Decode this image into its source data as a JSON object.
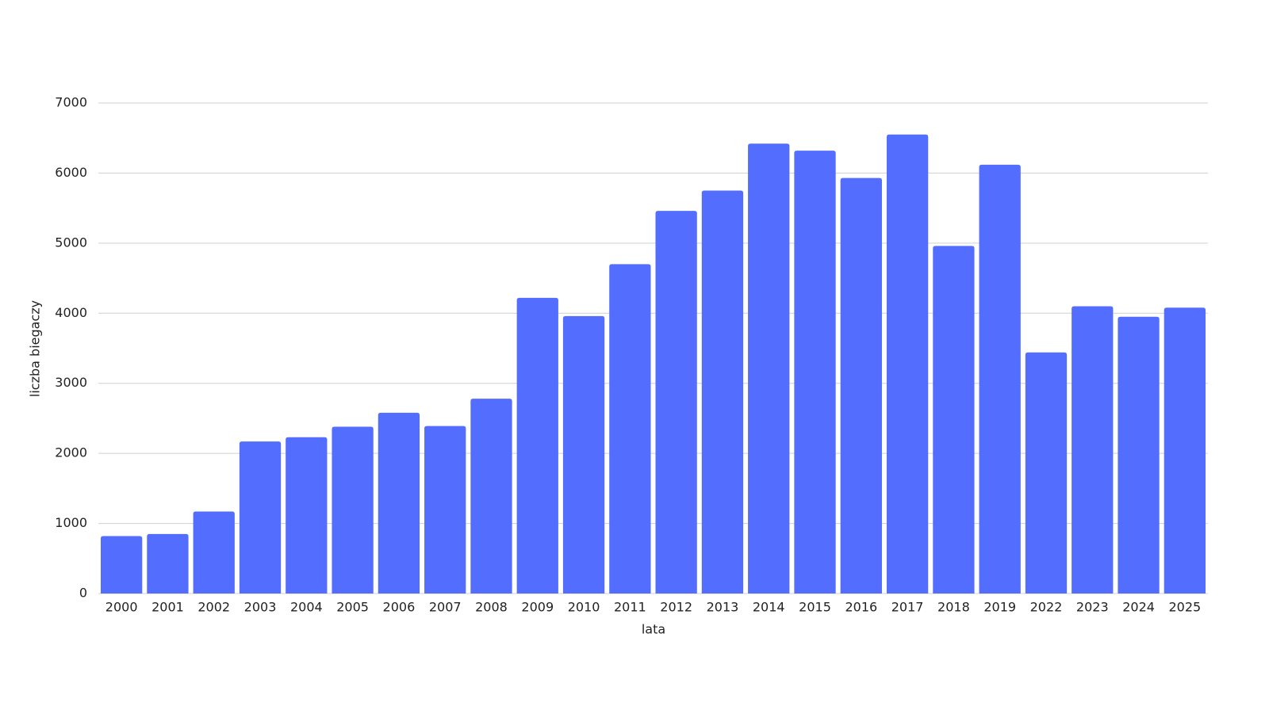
{
  "chart_data": {
    "type": "bar",
    "x_label": "lata",
    "y_label": "liczba biegaczy",
    "categories": [
      "2000",
      "2001",
      "2002",
      "2003",
      "2004",
      "2005",
      "2006",
      "2007",
      "2008",
      "2009",
      "2010",
      "2011",
      "2012",
      "2013",
      "2014",
      "2015",
      "2016",
      "2017",
      "2018",
      "2019",
      "2022",
      "2023",
      "2024",
      "2025"
    ],
    "values": [
      820,
      850,
      1170,
      2170,
      2230,
      2380,
      2580,
      2390,
      2780,
      4220,
      3960,
      4700,
      5460,
      5750,
      6420,
      6320,
      5930,
      6550,
      4960,
      6120,
      3440,
      4100,
      3950,
      4080
    ],
    "color": "#536dfe",
    "ylim": [
      0,
      7000
    ],
    "yticks": [
      0,
      1000,
      2000,
      3000,
      4000,
      5000,
      6000,
      7000
    ],
    "grid": true
  }
}
